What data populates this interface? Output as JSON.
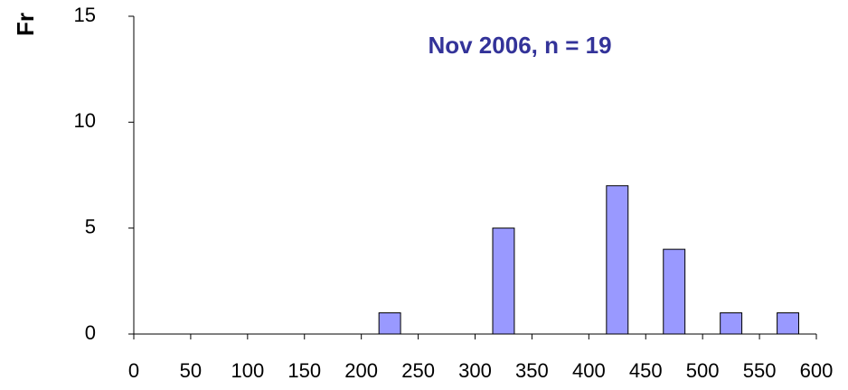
{
  "chart_data": {
    "type": "histogram",
    "title": "Nov 2006, n = 19",
    "y_label": "Fr",
    "bins": [
      0,
      50,
      100,
      150,
      200,
      250,
      300,
      350,
      400,
      450,
      500,
      550,
      600
    ],
    "values": [
      0,
      0,
      0,
      0,
      1,
      0,
      5,
      0,
      7,
      4,
      1,
      1
    ],
    "color": "#9999ff",
    "xlim": [
      0,
      600
    ],
    "xticks": [
      0,
      50,
      100,
      150,
      200,
      250,
      300,
      350,
      400,
      450,
      500,
      550,
      600
    ],
    "ylim": [
      0,
      15
    ],
    "yticks": [
      0,
      5,
      10,
      15
    ],
    "grid": false
  }
}
